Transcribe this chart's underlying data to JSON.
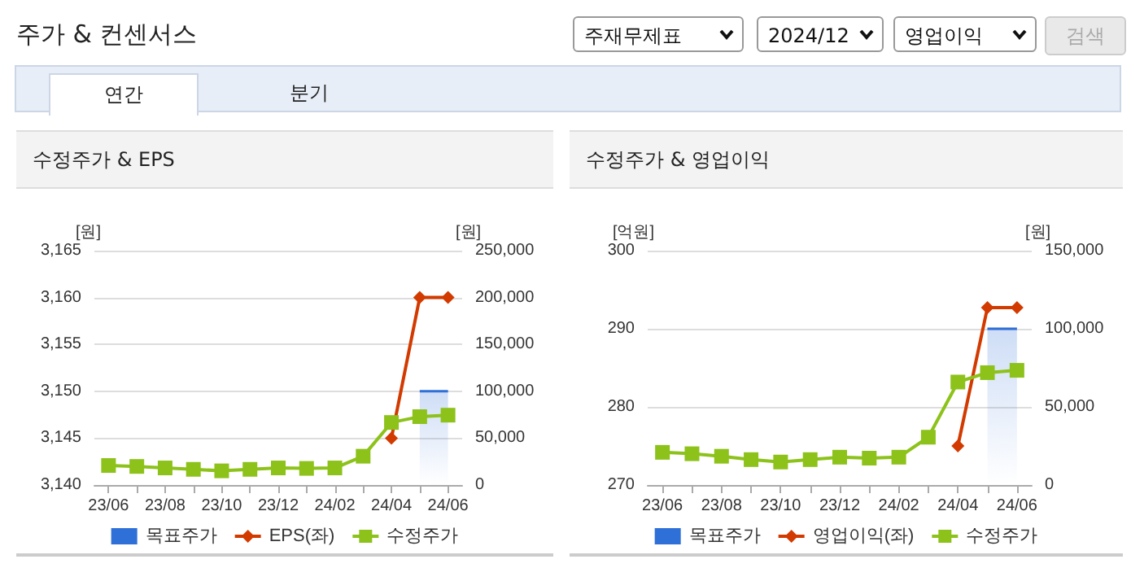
{
  "chart_data": [
    {
      "type": "other",
      "title": "주가 & 컨센서스",
      "annotations": [
        "주재무제표",
        "2024/12",
        "영업이익",
        "검색",
        "연간",
        "분기"
      ]
    },
    {
      "type": "line",
      "title": "수정주가 & EPS",
      "ylabel": "[원]",
      "y2label": "[원]",
      "categories": [
        "23/06",
        null,
        "23/08",
        null,
        "23/10",
        null,
        "23/12",
        null,
        "24/02",
        null,
        "24/04",
        null,
        "24/06"
      ],
      "series": [
        {
          "name": "목표주가",
          "type": "area",
          "axis": "y2",
          "color": "#2e6fd8",
          "marker": "none",
          "values": [
            null,
            null,
            null,
            null,
            null,
            null,
            null,
            null,
            null,
            null,
            null,
            100000,
            100000
          ]
        },
        {
          "name": "EPS(좌)",
          "type": "line",
          "axis": "y",
          "color": "#d23a00",
          "marker": "diamond",
          "values": [
            null,
            null,
            null,
            null,
            null,
            null,
            null,
            null,
            null,
            null,
            3145,
            3160,
            3160
          ]
        },
        {
          "name": "수정주가",
          "type": "line",
          "axis": "y2",
          "color": "#8cc21a",
          "marker": "square",
          "values": [
            20800,
            19800,
            18200,
            16700,
            15100,
            16700,
            18200,
            17700,
            18200,
            30700,
            66700,
            72900,
            74500
          ]
        }
      ],
      "ylim": [
        3140,
        3165
      ],
      "yticks": [
        {
          "value": 3140,
          "label": "3,140"
        },
        {
          "value": 3145,
          "label": "3,145"
        },
        {
          "value": 3150,
          "label": "3,150"
        },
        {
          "value": 3155,
          "label": "3,155"
        },
        {
          "value": 3160,
          "label": "3,160"
        },
        {
          "value": 3165,
          "label": "3,165"
        }
      ],
      "y2lim": [
        0,
        250000
      ],
      "y2ticks": [
        0,
        {
          "value": 50000,
          "label": "50,000"
        },
        {
          "value": 100000,
          "label": "100,000"
        },
        {
          "value": 150000,
          "label": "150,000"
        },
        {
          "value": 200000,
          "label": "200,000"
        },
        {
          "value": 250000,
          "label": "250,000"
        }
      ],
      "grid": "y",
      "legend": "bottom"
    },
    {
      "type": "line",
      "title": "수정주가 & 영업이익",
      "ylabel": "[억원]",
      "y2label": "[원]",
      "categories": [
        "23/06",
        null,
        "23/08",
        null,
        "23/10",
        null,
        "23/12",
        null,
        "24/02",
        null,
        "24/04",
        null,
        "24/06"
      ],
      "series": [
        {
          "name": "목표주가",
          "type": "area",
          "axis": "y2",
          "color": "#2e6fd8",
          "marker": "none",
          "values": [
            null,
            null,
            null,
            null,
            null,
            null,
            null,
            null,
            null,
            null,
            null,
            100000,
            100000
          ]
        },
        {
          "name": "영업이익(좌)",
          "type": "line",
          "axis": "y",
          "color": "#d23a00",
          "marker": "diamond",
          "values": [
            null,
            null,
            null,
            null,
            null,
            null,
            null,
            null,
            null,
            null,
            275,
            292.7,
            292.7
          ]
        },
        {
          "name": "수정주가",
          "type": "line",
          "axis": "y2",
          "color": "#8cc21a",
          "marker": "square",
          "values": [
            20900,
            20000,
            18400,
            16250,
            14700,
            16250,
            17800,
            17200,
            17800,
            30600,
            65900,
            71900,
            73400
          ]
        }
      ],
      "ylim": [
        270,
        300
      ],
      "yticks": [
        270,
        280,
        290,
        300
      ],
      "y2lim": [
        0,
        150000
      ],
      "y2ticks": [
        0,
        {
          "value": 50000,
          "label": "50,000"
        },
        {
          "value": 100000,
          "label": "100,000"
        },
        {
          "value": 150000,
          "label": "150,000"
        }
      ],
      "grid": "y",
      "legend": "bottom"
    }
  ]
}
